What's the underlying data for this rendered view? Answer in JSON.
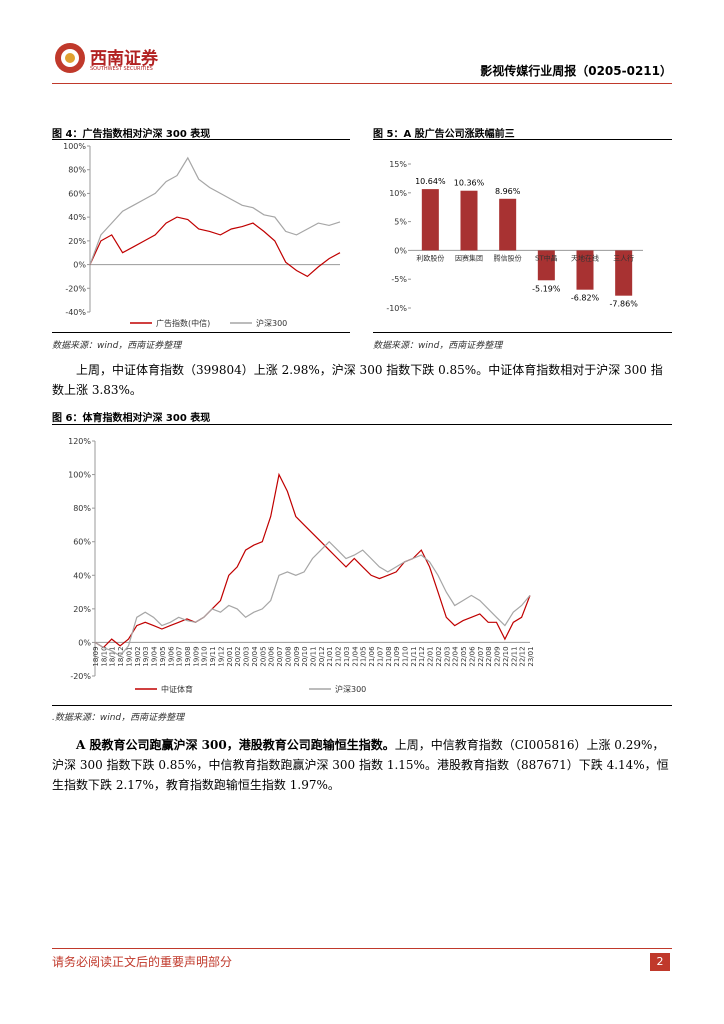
{
  "header": {
    "logo_cn": "西南证券",
    "logo_en": "SOUTHWEST SECURITIES",
    "report_title": "影视传媒行业周报（0205-0211）"
  },
  "figures": [
    {
      "caption": "图 4：广告指数相对沪深 300 表现",
      "source": "数据来源：wind，西南证券整理",
      "chart_data": {
        "type": "line",
        "ylim": [
          -40,
          100
        ],
        "yticks": [
          {
            "value": -40,
            "label": "-40%"
          },
          {
            "value": -20,
            "label": "-20%"
          },
          {
            "value": 0,
            "label": "0%"
          },
          {
            "value": 20,
            "label": "20%"
          },
          {
            "value": 40,
            "label": "40%"
          },
          {
            "value": 60,
            "label": "60%"
          },
          {
            "value": 80,
            "label": "80%"
          },
          {
            "value": 100,
            "label": "100%"
          }
        ],
        "series": [
          {
            "name": "广告指数(中信)",
            "color": "#c00000",
            "values": [
              0,
              20,
              25,
              10,
              15,
              20,
              25,
              35,
              40,
              38,
              30,
              28,
              25,
              30,
              32,
              35,
              28,
              20,
              2,
              -5,
              -10,
              -2,
              5,
              10
            ]
          },
          {
            "name": "沪深300",
            "color": "#a6a6a6",
            "values": [
              0,
              25,
              35,
              45,
              50,
              55,
              60,
              70,
              75,
              90,
              72,
              65,
              60,
              55,
              50,
              48,
              42,
              40,
              28,
              25,
              30,
              35,
              33,
              36
            ]
          }
        ]
      }
    },
    {
      "caption": "图 5：A 股广告公司涨跌幅前三",
      "source": "数据来源：wind，西南证券整理",
      "chart_data": {
        "type": "bar",
        "ylim": [
          -10,
          15
        ],
        "color": "#a83232",
        "yticks": [
          {
            "value": -10,
            "label": "-10%"
          },
          {
            "value": -5,
            "label": "-5%"
          },
          {
            "value": 0,
            "label": "0%"
          },
          {
            "value": 5,
            "label": "5%"
          },
          {
            "value": 10,
            "label": "10%"
          },
          {
            "value": 15,
            "label": "15%"
          }
        ],
        "categories": [
          "利欧股份",
          "因赛集团",
          "腾信股份",
          "ST中昌",
          "天地在线",
          "三人行"
        ],
        "values": [
          10.64,
          10.36,
          8.96,
          -5.19,
          -6.82,
          -7.86
        ],
        "value_labels": [
          "10.64%",
          "10.36%",
          "8.96%",
          "-5.19%",
          "-6.82%",
          "-7.86%"
        ]
      }
    },
    {
      "caption": "图 6：体育指数相对沪深 300 表现",
      "source": ".数据来源：wind，西南证券整理",
      "chart_data": {
        "type": "line",
        "ylim": [
          -20,
          120
        ],
        "yticks": [
          {
            "value": -20,
            "label": "-20%"
          },
          {
            "value": 0,
            "label": "0%"
          },
          {
            "value": 20,
            "label": "20%"
          },
          {
            "value": 40,
            "label": "40%"
          },
          {
            "value": 60,
            "label": "60%"
          },
          {
            "value": 80,
            "label": "80%"
          },
          {
            "value": 100,
            "label": "100%"
          },
          {
            "value": 120,
            "label": "120%"
          }
        ],
        "categories": [
          "18/09",
          "18/10",
          "18/11",
          "18/12",
          "19/01",
          "19/02",
          "19/03",
          "19/04",
          "19/05",
          "19/06",
          "19/07",
          "19/08",
          "19/09",
          "19/10",
          "19/11",
          "19/12",
          "20/01",
          "20/02",
          "20/03",
          "20/04",
          "20/05",
          "20/06",
          "20/07",
          "20/08",
          "20/09",
          "20/10",
          "20/11",
          "20/12",
          "21/01",
          "21/02",
          "21/03",
          "21/04",
          "21/05",
          "21/06",
          "21/07",
          "21/08",
          "21/09",
          "21/10",
          "21/11",
          "21/12",
          "22/01",
          "22/02",
          "22/03",
          "22/04",
          "22/05",
          "22/06",
          "22/07",
          "22/08",
          "22/09",
          "22/10",
          "22/11",
          "22/12",
          "23/01"
        ],
        "series": [
          {
            "name": "中证体育",
            "color": "#c00000",
            "values": [
              0,
              -3,
              2,
              -2,
              2,
              10,
              12,
              10,
              8,
              10,
              12,
              14,
              12,
              15,
              20,
              25,
              40,
              45,
              55,
              58,
              60,
              75,
              100,
              90,
              75,
              70,
              65,
              60,
              55,
              50,
              45,
              50,
              45,
              40,
              38,
              40,
              42,
              48,
              50,
              55,
              45,
              30,
              15,
              10,
              13,
              15,
              17,
              12,
              12,
              2,
              12,
              15,
              28
            ]
          },
          {
            "name": "沪深300",
            "color": "#a6a6a6",
            "values": [
              0,
              -3,
              -5,
              -8,
              -2,
              15,
              18,
              15,
              10,
              12,
              15,
              13,
              12,
              15,
              20,
              18,
              22,
              20,
              15,
              18,
              20,
              25,
              40,
              42,
              40,
              42,
              50,
              55,
              60,
              55,
              50,
              52,
              55,
              50,
              45,
              42,
              45,
              48,
              50,
              52,
              48,
              40,
              30,
              22,
              25,
              28,
              25,
              20,
              15,
              10,
              18,
              22,
              28
            ]
          }
        ]
      }
    }
  ],
  "paragraphs": [
    {
      "text": "上周，中证体育指数（399804）上涨 2.98%，沪深 300 指数下跌 0.85%。中证体育指数相对于沪深 300 指数上涨 3.83%。"
    },
    {
      "bold": "A 股教育公司跑赢沪深 300，港股教育公司跑输恒生指数。",
      "text": "上周，中信教育指数（CI005816）上涨 0.29%，沪深 300 指数下跌 0.85%，中信教育指数跑赢沪深 300 指数 1.15%。港股教育指数（887671）下跌 4.14%，恒生指数下跌 2.17%，教育指数跑输恒生指数 1.97%。"
    }
  ],
  "footer": {
    "notice": "请务必阅读正文后的重要声明部分",
    "page": "2"
  }
}
